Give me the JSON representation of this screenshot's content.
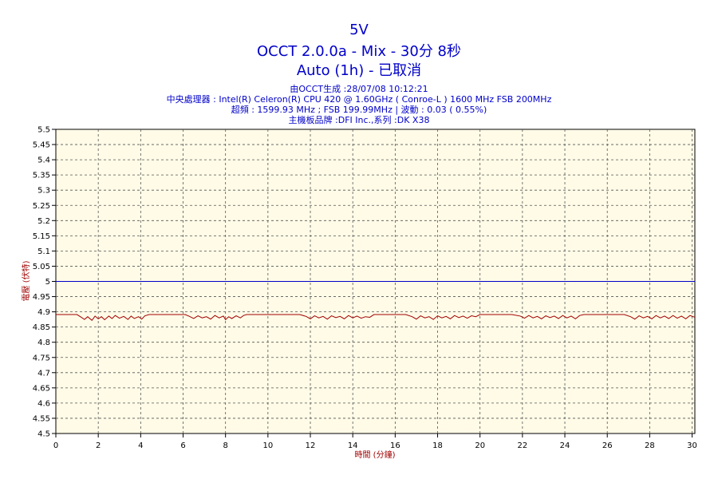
{
  "header": {
    "title": "5V",
    "subtitle": "OCCT 2.0.0a - Mix - 30分 8秒",
    "status": "Auto (1h) - 已取消",
    "info_generated": "由OCCT生成 :28/07/08 10:12:21",
    "info_cpu": "中央處理器 : Intel(R) Celeron(R) CPU 420 @ 1.60GHz ( Conroe-L ) 1600 MHz FSB 200MHz",
    "info_freq": "超頻 : 1599.93 MHz ; FSB 199.99MHz | 波動 : 0.03 ( 0.55%)",
    "info_board": "主機板品牌 :DFI Inc.,系列 :DK X38"
  },
  "chart_data": {
    "type": "line",
    "xlabel": "時間 (分鐘)",
    "ylabel": "電壓 (伏特)",
    "xlim": [
      0,
      30.13
    ],
    "ylim": [
      4.5,
      5.5
    ],
    "x_ticks": [
      "0",
      "2",
      "4",
      "6",
      "8",
      "10",
      "12",
      "14",
      "16",
      "18",
      "20",
      "22",
      "24",
      "26",
      "28",
      "30"
    ],
    "y_ticks": [
      "4.5",
      "4.55",
      "4.6",
      "4.65",
      "4.7",
      "4.75",
      "4.8",
      "4.85",
      "4.9",
      "4.95",
      "5",
      "5.05",
      "5.1",
      "5.15",
      "5.2",
      "5.25",
      "5.3",
      "5.35",
      "5.4",
      "5.45",
      "5.5"
    ],
    "grid": true,
    "colors": {
      "reference": "#0000c8",
      "measured": "#a00000",
      "plot_bg": "#fffbe7",
      "text": "#0000c8"
    },
    "series": [
      {
        "values_x": [
          0,
          30.13
        ],
        "values_y": [
          5.0,
          5.0
        ]
      },
      {
        "values_x": [
          0,
          0.5,
          1.0,
          1.2,
          1.35,
          1.5,
          1.7,
          1.85,
          2.0,
          2.15,
          2.3,
          2.5,
          2.65,
          2.8,
          3.0,
          3.2,
          3.4,
          3.55,
          3.7,
          3.9,
          4.05,
          4.2,
          4.4,
          4.7,
          5.2,
          5.7,
          6.1,
          6.3,
          6.5,
          6.7,
          6.9,
          7.1,
          7.3,
          7.5,
          7.7,
          7.9,
          8.0,
          8.15,
          8.3,
          8.5,
          8.7,
          8.85,
          9.0,
          9.2,
          9.5,
          10.0,
          10.5,
          11.0,
          11.5,
          11.8,
          12.0,
          12.2,
          12.4,
          12.6,
          12.8,
          13.0,
          13.2,
          13.4,
          13.6,
          13.8,
          14.0,
          14.2,
          14.4,
          14.6,
          14.8,
          15.0,
          15.3,
          15.7,
          16.1,
          16.5,
          16.8,
          17.0,
          17.2,
          17.4,
          17.6,
          17.8,
          18.0,
          18.2,
          18.4,
          18.6,
          18.8,
          19.0,
          19.2,
          19.4,
          19.6,
          19.8,
          20.0,
          20.3,
          20.7,
          21.1,
          21.5,
          21.9,
          22.1,
          22.3,
          22.5,
          22.7,
          22.9,
          23.1,
          23.3,
          23.5,
          23.7,
          23.9,
          24.1,
          24.3,
          24.5,
          24.7,
          24.9,
          25.2,
          25.6,
          26.0,
          26.4,
          26.8,
          27.1,
          27.3,
          27.5,
          27.7,
          27.9,
          28.1,
          28.3,
          28.5,
          28.7,
          28.9,
          29.1,
          29.3,
          29.5,
          29.7,
          29.9,
          30.13
        ],
        "values_y": [
          4.891,
          4.891,
          4.891,
          4.882,
          4.875,
          4.884,
          4.872,
          4.886,
          4.877,
          4.884,
          4.874,
          4.886,
          4.878,
          4.888,
          4.879,
          4.885,
          4.875,
          4.886,
          4.878,
          4.884,
          4.876,
          4.887,
          4.891,
          4.891,
          4.891,
          4.891,
          4.891,
          4.885,
          4.878,
          4.887,
          4.88,
          4.884,
          4.876,
          4.888,
          4.88,
          4.886,
          4.874,
          4.884,
          4.878,
          4.887,
          4.88,
          4.888,
          4.891,
          4.891,
          4.891,
          4.891,
          4.891,
          4.891,
          4.891,
          4.885,
          4.877,
          4.887,
          4.88,
          4.885,
          4.876,
          4.887,
          4.881,
          4.885,
          4.877,
          4.888,
          4.88,
          4.886,
          4.879,
          4.884,
          4.882,
          4.891,
          4.891,
          4.891,
          4.891,
          4.891,
          4.884,
          4.876,
          4.887,
          4.88,
          4.884,
          4.875,
          4.887,
          4.88,
          4.885,
          4.877,
          4.888,
          4.881,
          4.886,
          4.879,
          4.887,
          4.884,
          4.891,
          4.891,
          4.891,
          4.891,
          4.891,
          4.886,
          4.879,
          4.888,
          4.88,
          4.885,
          4.877,
          4.887,
          4.881,
          4.886,
          4.878,
          4.888,
          4.88,
          4.886,
          4.877,
          4.888,
          4.891,
          4.891,
          4.891,
          4.891,
          4.891,
          4.891,
          4.884,
          4.876,
          4.887,
          4.88,
          4.885,
          4.877,
          4.888,
          4.88,
          4.886,
          4.878,
          4.888,
          4.879,
          4.886,
          4.877,
          4.888,
          4.882
        ]
      }
    ]
  }
}
